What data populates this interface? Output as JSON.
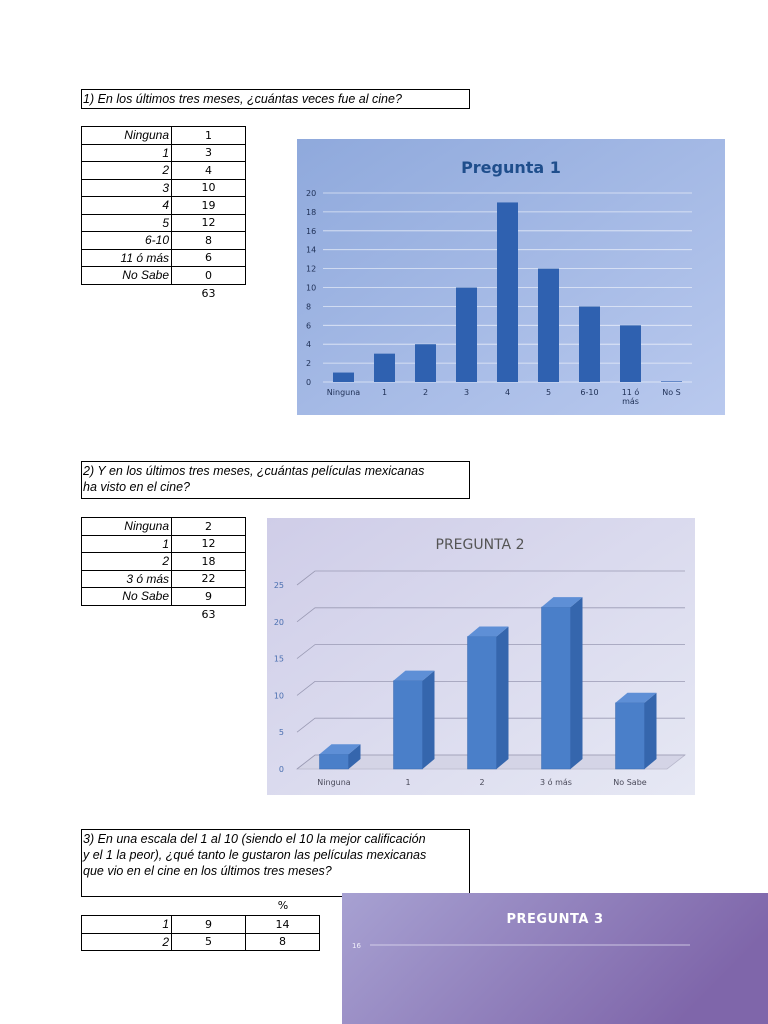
{
  "questions": {
    "q1": "1) En los últimos tres meses, ¿cuántas veces fue al cine?",
    "q2": "2) Y en los últimos tres meses, ¿cuántas películas mexicanas\nha visto en el cine?",
    "q3": "3) En una escala del 1 al 10 (siendo el 10 la mejor calificación\ny el 1 la peor), ¿qué tanto le gustaron las películas mexicanas\nque vio en el cine en los últimos tres meses?"
  },
  "table1": {
    "rows": [
      {
        "label": "Ninguna",
        "value": "1"
      },
      {
        "label": "1",
        "value": "3"
      },
      {
        "label": "2",
        "value": "4"
      },
      {
        "label": "3",
        "value": "10"
      },
      {
        "label": "4",
        "value": "19"
      },
      {
        "label": "5",
        "value": "12"
      },
      {
        "label": "6-10",
        "value": "8"
      },
      {
        "label": "11 ó más",
        "value": "6"
      },
      {
        "label": "No Sabe",
        "value": "0"
      }
    ],
    "total": "63"
  },
  "table2": {
    "rows": [
      {
        "label": "Ninguna",
        "value": "2"
      },
      {
        "label": "1",
        "value": "12"
      },
      {
        "label": "2",
        "value": "18"
      },
      {
        "label": "3 ó más",
        "value": "22"
      },
      {
        "label": "No Sabe",
        "value": "9"
      }
    ],
    "total": "63"
  },
  "table3": {
    "pct_header": "%",
    "rows": [
      {
        "label": "1",
        "value": "9",
        "pct": "14"
      },
      {
        "label": "2",
        "value": "5",
        "pct": "8"
      }
    ]
  },
  "chart_data": [
    {
      "type": "bar",
      "title": "Pregunta 1",
      "categories": [
        "Ninguna",
        "1",
        "2",
        "3",
        "4",
        "5",
        "6-10",
        "11 ó más",
        "No Sabe"
      ],
      "category_labels_shown": [
        "Ninguna",
        "1",
        "2",
        "3",
        "4",
        "5",
        "6-10",
        "11 ó\nmás",
        "No S"
      ],
      "values": [
        1,
        3,
        4,
        10,
        19,
        12,
        8,
        6,
        0
      ],
      "ylim": [
        0,
        20
      ],
      "yticks": [
        "0",
        "2",
        "4",
        "6",
        "8",
        "10",
        "12",
        "14",
        "16",
        "18",
        "20"
      ],
      "grid": true,
      "colors": {
        "background": "#a9bee6",
        "bar": "#2f61b0",
        "title": "#1f4e8c"
      }
    },
    {
      "type": "bar",
      "title": "PREGUNTA 2",
      "categories": [
        "Ninguna",
        "1",
        "2",
        "3 ó más",
        "No Sabe"
      ],
      "values": [
        2,
        12,
        18,
        22,
        9
      ],
      "ylim": [
        0,
        25
      ],
      "yticks": [
        "0",
        "5",
        "10",
        "15",
        "20",
        "25"
      ],
      "grid": true,
      "colors": {
        "background": "#d8dcef",
        "bar": "#4a7fc9",
        "title": "#555555"
      }
    },
    {
      "type": "bar",
      "title": "PREGUNTA 3",
      "yticks": [
        "16"
      ],
      "grid": true,
      "colors": {
        "background": "#9a8ec8",
        "title": "#ffffff"
      }
    }
  ]
}
